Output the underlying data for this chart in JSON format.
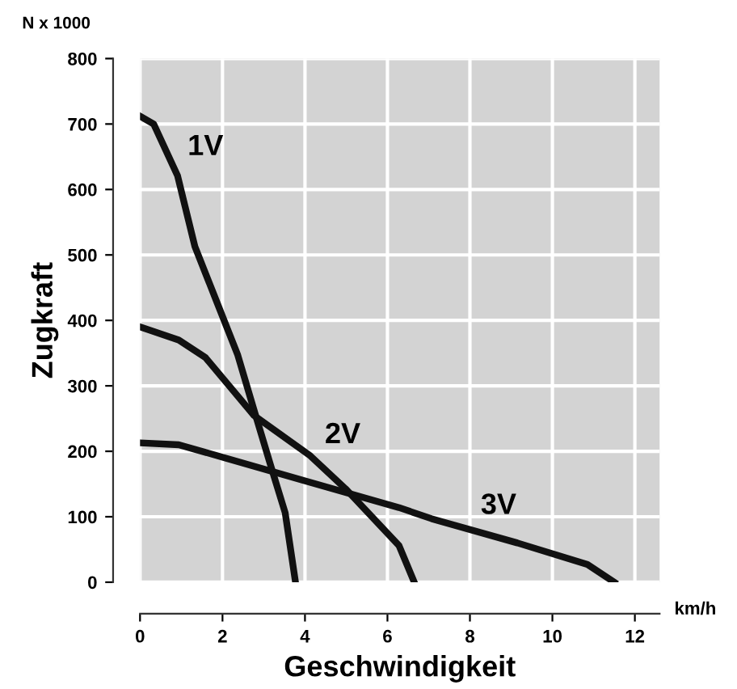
{
  "chart_data": {
    "type": "line",
    "xlabel": "Geschwindigkeit",
    "ylabel": "Zugkraft",
    "xlim": [
      0,
      12.6
    ],
    "xticks": [
      0,
      2,
      4,
      6,
      8,
      10,
      12
    ],
    "ylim": [
      0,
      800
    ],
    "yticks": [
      0,
      100,
      200,
      300,
      400,
      500,
      600,
      700,
      800
    ],
    "grid": true,
    "legend": false,
    "marker": "none",
    "line_style": "solid",
    "series": [
      {
        "color": "#111111",
        "x": [
          0,
          0.33,
          0.91,
          1.33,
          1.85,
          2.37,
          2.76,
          3.16,
          3.52,
          3.77
        ],
        "values": [
          712,
          700,
          621,
          513,
          430,
          347,
          264,
          180,
          106,
          0
        ]
      },
      {
        "color": "#111111",
        "x": [
          0,
          0.94,
          1.59,
          2.76,
          4.13,
          4.98,
          6.28,
          6.65
        ],
        "values": [
          390,
          370,
          343,
          255,
          193,
          143,
          56,
          0
        ]
      },
      {
        "color": "#111111",
        "x": [
          0,
          0.94,
          2.11,
          3.94,
          6.28,
          7.07,
          9.15,
          10.85,
          11.5
        ],
        "values": [
          213,
          210,
          189,
          156,
          114,
          97,
          60,
          27,
          0
        ]
      }
    ],
    "annotations": [
      "1V",
      "2V",
      "3V",
      "N x 1000",
      "km/h"
    ]
  }
}
